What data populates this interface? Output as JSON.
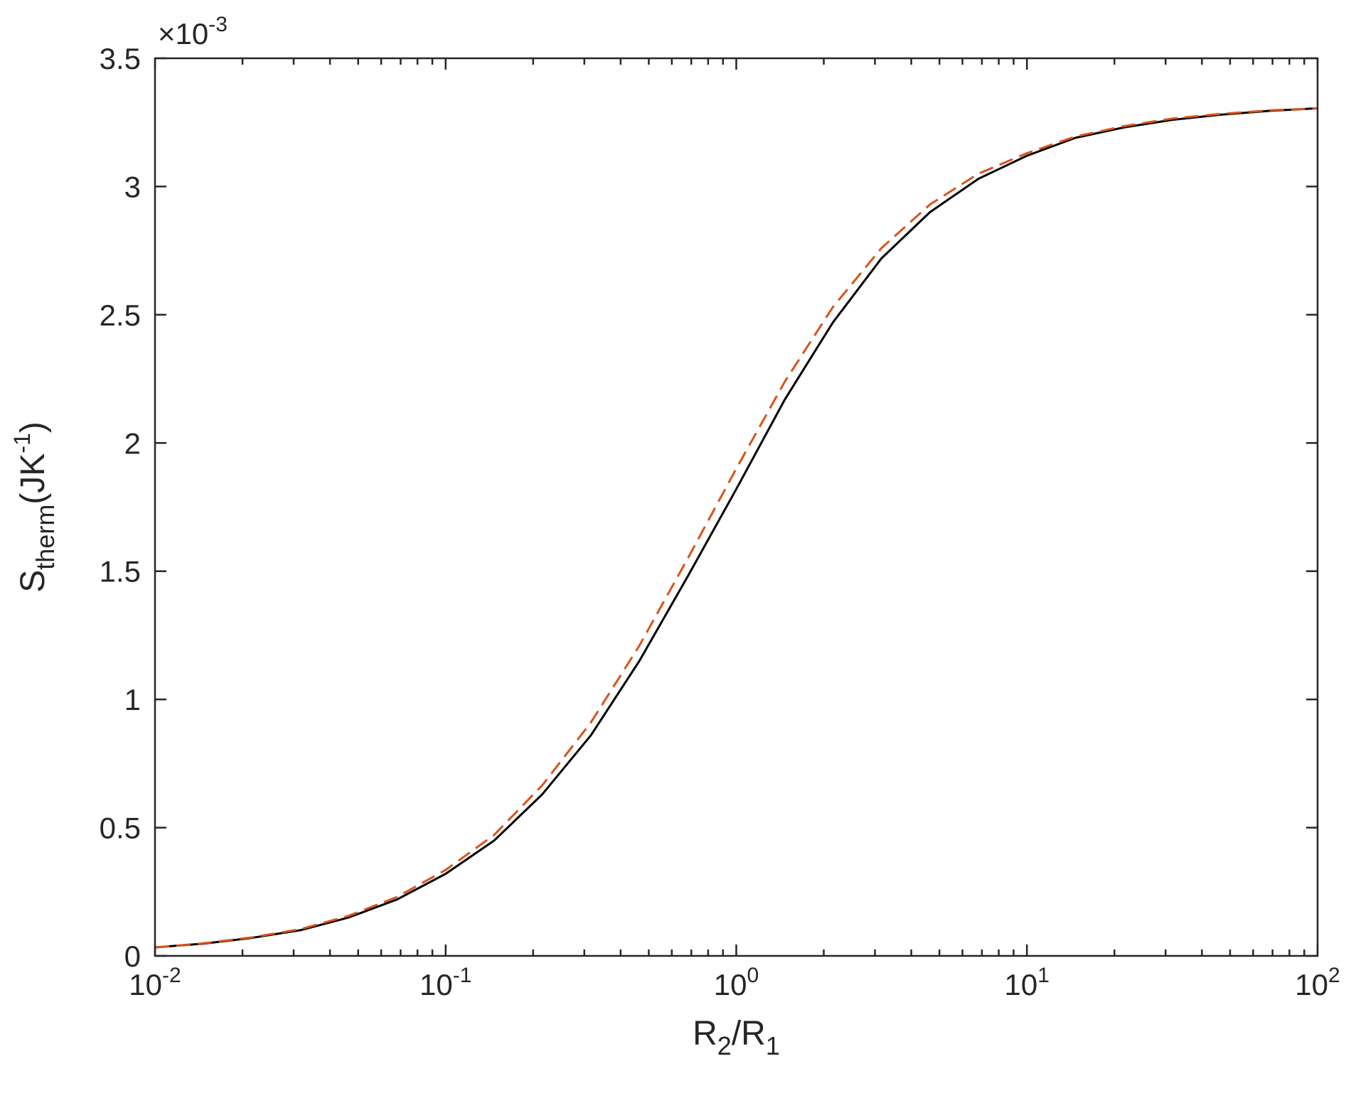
{
  "chart_data": {
    "type": "line",
    "xscale": "log",
    "xlim": [
      0.01,
      100
    ],
    "ylim": [
      0,
      0.0035
    ],
    "x_ticks": [
      {
        "value": 0.01,
        "base": "10",
        "exp": "-2"
      },
      {
        "value": 0.1,
        "base": "10",
        "exp": "-1"
      },
      {
        "value": 1,
        "base": "10",
        "exp": "0"
      },
      {
        "value": 10,
        "base": "10",
        "exp": "1"
      },
      {
        "value": 100,
        "base": "10",
        "exp": "2"
      }
    ],
    "y_ticks": [
      {
        "value": 0,
        "label": "0"
      },
      {
        "value": 0.0005,
        "label": "0.5"
      },
      {
        "value": 0.001,
        "label": "1"
      },
      {
        "value": 0.0015,
        "label": "1.5"
      },
      {
        "value": 0.002,
        "label": "2"
      },
      {
        "value": 0.0025,
        "label": "2.5"
      },
      {
        "value": 0.003,
        "label": "3"
      },
      {
        "value": 0.0035,
        "label": "3.5"
      }
    ],
    "y_multiplier": {
      "prefix": "×10",
      "exp": "-3"
    },
    "xlabel": {
      "main": "R",
      "sub1": "2",
      "mid": "/R",
      "sub2": "1"
    },
    "ylabel": {
      "main": "S",
      "sub": "therm",
      "unit_start": "(JK",
      "sup": "-1",
      "unit_end": ")"
    },
    "grid": false,
    "x": [
      0.01,
      0.0147,
      0.0215,
      0.0316,
      0.0464,
      0.0681,
      0.1,
      0.147,
      0.215,
      0.316,
      0.464,
      0.681,
      1,
      1.47,
      2.15,
      3.16,
      4.64,
      6.81,
      10,
      14.7,
      21.5,
      31.6,
      46.4,
      68.1,
      100
    ],
    "series": [
      {
        "style": "solid",
        "color": "#000000",
        "values": [
          3.3e-05,
          4.8e-05,
          7e-05,
          0.0001,
          0.00015,
          0.00022,
          0.00032,
          0.00045,
          0.00063,
          0.00086,
          0.00115,
          0.00148,
          0.00182,
          0.00217,
          0.00247,
          0.00272,
          0.0029,
          0.00303,
          0.00312,
          0.00319,
          0.00323,
          0.00326,
          0.00328,
          0.003295,
          0.003305
        ]
      },
      {
        "style": "dashed",
        "color": "#D95319",
        "values": [
          3.3e-05,
          4.9e-05,
          7.2e-05,
          0.000104,
          0.000156,
          0.00023,
          0.000335,
          0.000472,
          0.000665,
          0.00091,
          0.00121,
          0.00155,
          0.0019,
          0.00224,
          0.00253,
          0.00276,
          0.00293,
          0.00305,
          0.00313,
          0.003195,
          0.003235,
          0.003265,
          0.003283,
          0.003297,
          0.003305
        ]
      }
    ]
  }
}
